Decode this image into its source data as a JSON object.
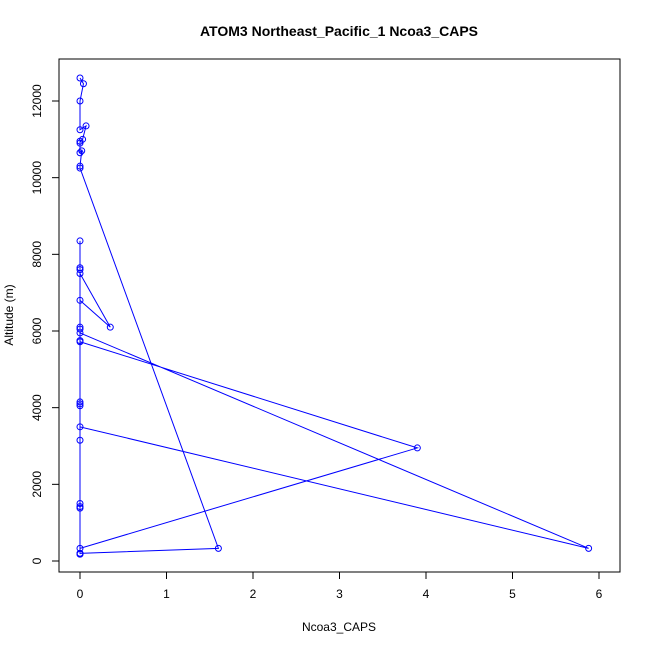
{
  "chart_data": {
    "type": "line",
    "title": "ATOM3 Northeast_Pacific_1 Ncoa3_CAPS",
    "xlabel": "Ncoa3_CAPS",
    "ylabel": "Altitude (m)",
    "xlim": [
      0,
      6
    ],
    "ylim": [
      0,
      12000
    ],
    "xticks": [
      0,
      1,
      2,
      3,
      4,
      5,
      6
    ],
    "yticks": [
      0,
      2000,
      4000,
      6000,
      8000,
      10000,
      12000
    ],
    "grid": false,
    "markers": "open-circle",
    "color": "#0000ff",
    "series": [
      {
        "points": [
          [
            0.0,
            12600
          ],
          [
            0.04,
            12450
          ],
          [
            0.0,
            12000
          ],
          [
            0.0,
            11250
          ],
          [
            0.07,
            11350
          ],
          [
            0.03,
            11000
          ],
          [
            0.0,
            10950
          ],
          [
            0.0,
            10900
          ],
          [
            0.0,
            10650
          ],
          [
            0.02,
            10700
          ],
          [
            0.0,
            10300
          ],
          [
            0.0,
            10250
          ],
          [
            1.6,
            330
          ],
          [
            0.0,
            200
          ],
          [
            0.0,
            180
          ],
          [
            0.0,
            8350
          ],
          [
            0.0,
            7650
          ],
          [
            0.0,
            7600
          ],
          [
            0.0,
            7500
          ],
          [
            0.35,
            6100
          ],
          [
            0.0,
            6800
          ],
          [
            0.0,
            6100
          ],
          [
            0.0,
            6050
          ],
          [
            0.0,
            5950
          ],
          [
            5.88,
            330
          ],
          [
            0.0,
            3500
          ],
          [
            0.0,
            3150
          ],
          [
            0.0,
            1500
          ],
          [
            0.0,
            1420
          ],
          [
            0.0,
            1380
          ],
          [
            0.0,
            4150
          ],
          [
            0.0,
            4100
          ],
          [
            0.0,
            4050
          ],
          [
            0.0,
            5750
          ],
          [
            0.0,
            5720
          ],
          [
            3.9,
            2950
          ],
          [
            0.0,
            330
          ],
          [
            0.0,
            180
          ],
          [
            0.0,
            200
          ]
        ]
      }
    ]
  }
}
